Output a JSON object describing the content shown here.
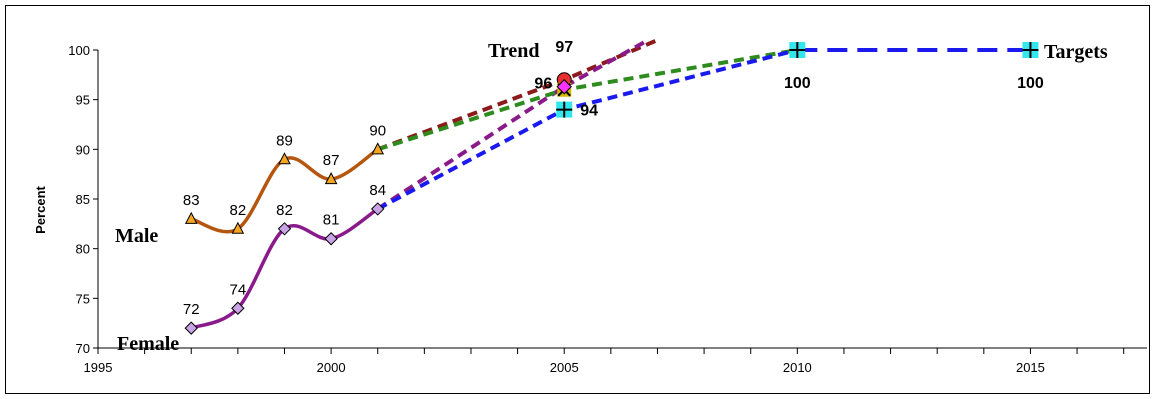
{
  "chart_data": {
    "type": "line",
    "ylabel": "Percent",
    "xlim": [
      1995,
      2017.5
    ],
    "ylim": [
      70,
      100
    ],
    "x_ticks": [
      1995,
      2000,
      2005,
      2010,
      2015
    ],
    "y_ticks": [
      70,
      75,
      80,
      85,
      90,
      95,
      100
    ],
    "grid": false,
    "series_labels": {
      "male": "Male",
      "female": "Female",
      "trend": "Trend",
      "targets": "Targets"
    },
    "series": [
      {
        "name": "Male",
        "color": "#b5560f",
        "marker": "triangle",
        "marker_fill": "#f5a623",
        "x": [
          1997,
          1998,
          1999,
          2000,
          2001
        ],
        "values": [
          83,
          82,
          89,
          87,
          90
        ],
        "labels": [
          "83",
          "82",
          "89",
          "87",
          "90"
        ]
      },
      {
        "name": "Female",
        "color": "#8a1a8a",
        "marker": "diamond",
        "marker_fill": "#c9a3e6",
        "x": [
          1997,
          1998,
          1999,
          2000,
          2001
        ],
        "values": [
          72,
          74,
          82,
          81,
          84
        ],
        "labels": [
          "72",
          "74",
          "82",
          "81",
          "84"
        ]
      }
    ],
    "projections": [
      {
        "color": "#8b1a1a",
        "x": [
          2001,
          2005,
          2007
        ],
        "values": [
          90,
          97,
          101
        ]
      },
      {
        "color": "#8a1a8a",
        "x": [
          2001,
          2005,
          2006.8
        ],
        "values": [
          84,
          96.3,
          101
        ]
      },
      {
        "color": "#2e8b1e",
        "x": [
          2001,
          2005,
          2010
        ],
        "values": [
          90,
          96,
          100
        ]
      },
      {
        "color": "#1a1aee",
        "x": [
          2001,
          2005,
          2010
        ],
        "values": [
          84,
          94,
          100
        ]
      }
    ],
    "targets_line": {
      "color": "#1a1aee",
      "x": [
        2010,
        2015
      ],
      "values": [
        100,
        100
      ]
    },
    "trend_points": [
      {
        "x": 2005,
        "y": 97,
        "label": "97",
        "color": "#e83030",
        "shape": "circle"
      },
      {
        "x": 2005,
        "y": 96,
        "label": "96",
        "color": "#d4b800",
        "shape": "x"
      },
      {
        "x": 2005,
        "y": 96.3,
        "label": "",
        "color": "#ff33ff",
        "shape": "diamond"
      }
    ],
    "target_points": [
      {
        "x": 2005,
        "y": 94,
        "label": "94"
      },
      {
        "x": 2010,
        "y": 100,
        "label": "100"
      },
      {
        "x": 2015,
        "y": 100,
        "label": "100"
      }
    ],
    "target_marker_fill": "#33e6ee"
  }
}
